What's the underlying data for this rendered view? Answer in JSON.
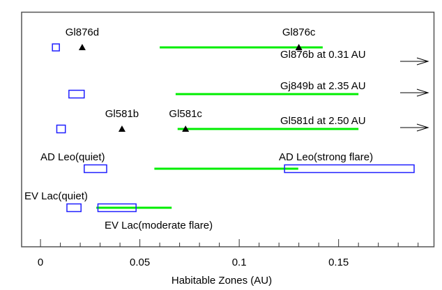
{
  "chart_data": {
    "type": "range",
    "title": "",
    "xlabel": "Habitable Zones (AU)",
    "ylabel": "",
    "xlim": [
      -0.0095,
      0.198
    ],
    "xticks": [
      0,
      0.05,
      0.1,
      0.15
    ],
    "xtick_labels": [
      "0",
      "0.05",
      "0.1",
      "0.15"
    ],
    "minor_tick_step": 0.01,
    "grid": false,
    "colors": {
      "habitable_zone": "#00ee00",
      "zone_box": "#1f1fff",
      "planet": "#000000",
      "axis": "#555555"
    },
    "rows": [
      {
        "habitable_zone": [
          0.06,
          0.142
        ],
        "boxes": [
          {
            "range": [
              0.006,
              0.0095
            ]
          }
        ],
        "planets": [
          {
            "name": "Gl876d",
            "x": 0.021
          },
          {
            "name": "Gl876c",
            "x": 0.13
          }
        ],
        "offscale_label": "Gl876b at 0.31 AU"
      },
      {
        "habitable_zone": [
          0.068,
          0.16
        ],
        "boxes": [
          {
            "range": [
              0.0143,
              0.022
            ]
          }
        ],
        "planets": [],
        "offscale_label": "Gj849b at 2.35 AU"
      },
      {
        "habitable_zone": [
          0.069,
          0.16
        ],
        "boxes": [
          {
            "range": [
              0.0082,
              0.0125
            ]
          }
        ],
        "planets": [
          {
            "name": "Gl581b",
            "x": 0.041
          },
          {
            "name": "Gl581c",
            "x": 0.073
          }
        ],
        "offscale_label": "Gl581d at 2.50 AU"
      },
      {
        "habitable_zone": [
          0.0573,
          0.1297
        ],
        "boxes": [
          {
            "range": [
              0.022,
              0.0333
            ],
            "label": "AD Leo(quiet)"
          },
          {
            "range": [
              0.1228,
              0.188
            ],
            "label": "AD Leo(strong flare)"
          }
        ],
        "planets": [],
        "offscale_label": ""
      },
      {
        "habitable_zone": [
          0.0281,
          0.066
        ],
        "boxes": [
          {
            "range": [
              0.0133,
              0.0204
            ],
            "label": "EV Lac(quiet)"
          },
          {
            "range": [
              0.0289,
              0.0481
            ],
            "label": "EV Lac(moderate flare)"
          }
        ],
        "planets": [],
        "offscale_label": ""
      }
    ]
  }
}
